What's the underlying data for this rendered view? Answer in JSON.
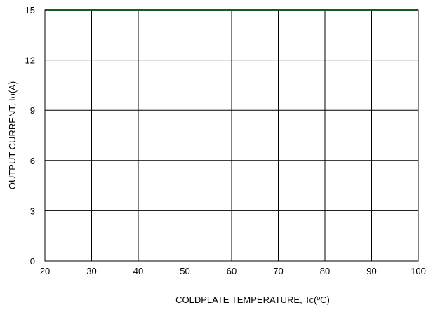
{
  "chart_data": {
    "type": "line",
    "title": "",
    "xlabel": "COLDPLATE TEMPERATURE,  Tc(ºC)",
    "ylabel": "OUTPUT CURRENT, Io(A)",
    "xlim": [
      20,
      100
    ],
    "ylim": [
      0,
      15
    ],
    "x_ticks": [
      20,
      30,
      40,
      50,
      60,
      70,
      80,
      90,
      100
    ],
    "y_ticks": [
      0,
      3,
      6,
      9,
      12,
      15
    ],
    "x_tick_labels": [
      "20",
      "30",
      "40",
      "50",
      "60",
      "70",
      "80",
      "90",
      "100"
    ],
    "y_tick_labels": [
      "0",
      "3",
      "6",
      "9",
      "12",
      "15"
    ],
    "grid": true,
    "legend": "none",
    "series": [
      {
        "color": "#2db34a",
        "x": [
          20,
          30,
          40,
          50,
          60,
          70,
          80,
          90,
          100
        ],
        "y": [
          15,
          15,
          15,
          15,
          15,
          15,
          15,
          15,
          15
        ]
      }
    ]
  }
}
